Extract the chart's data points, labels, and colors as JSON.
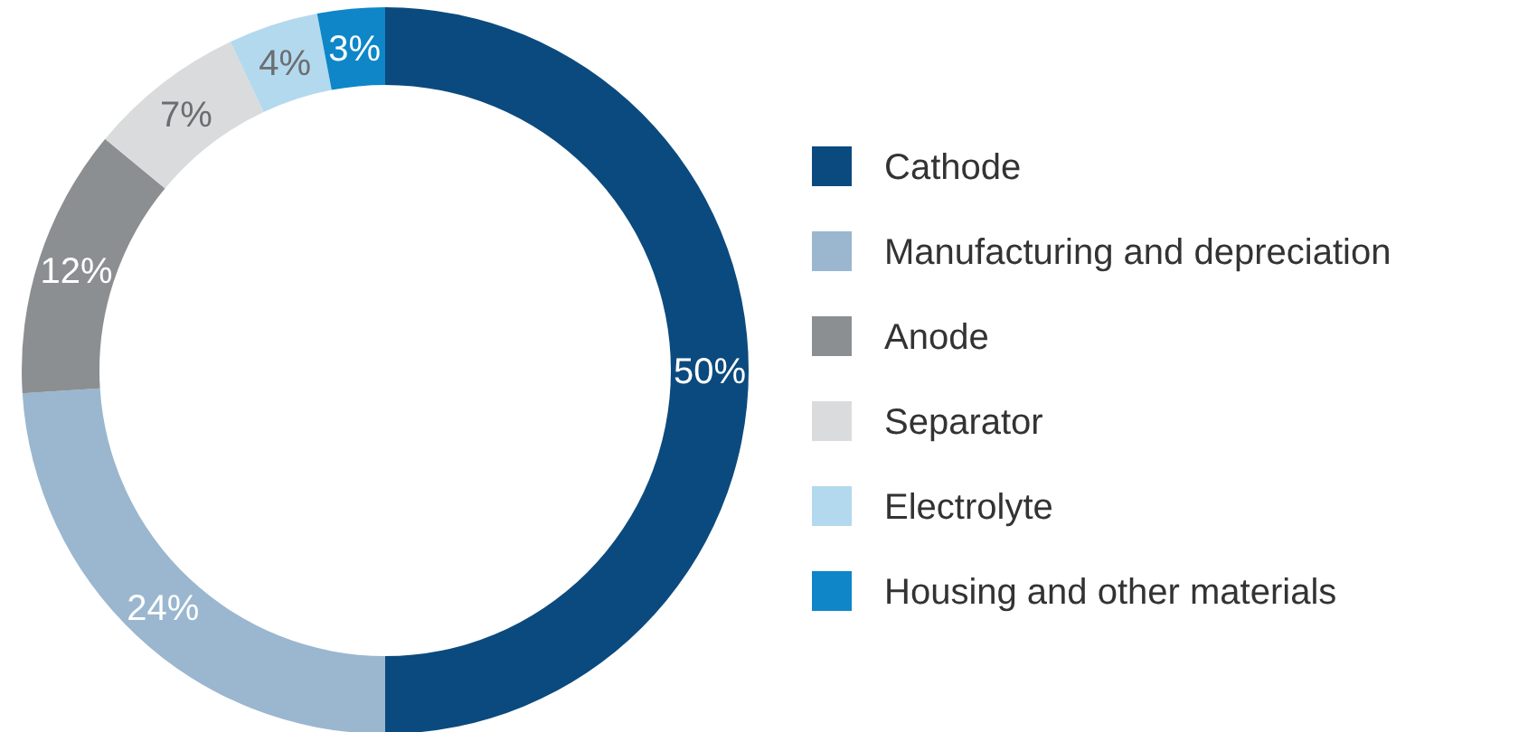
{
  "chart_data": {
    "type": "donut",
    "categories": [
      "Cathode",
      "Manufacturing and depreciation",
      "Anode",
      "Separator",
      "Electrolyte",
      "Housing and other materials"
    ],
    "values": [
      50,
      24,
      12,
      7,
      4,
      3
    ],
    "colors": [
      "#0b4a7e",
      "#9ab7cf",
      "#8c8f91",
      "#dadbdc",
      "#b3d9ee",
      "#0e86c8"
    ],
    "value_labels": [
      "50%",
      "24%",
      "12%",
      "7%",
      "4%",
      "3%"
    ],
    "legend": "right"
  }
}
